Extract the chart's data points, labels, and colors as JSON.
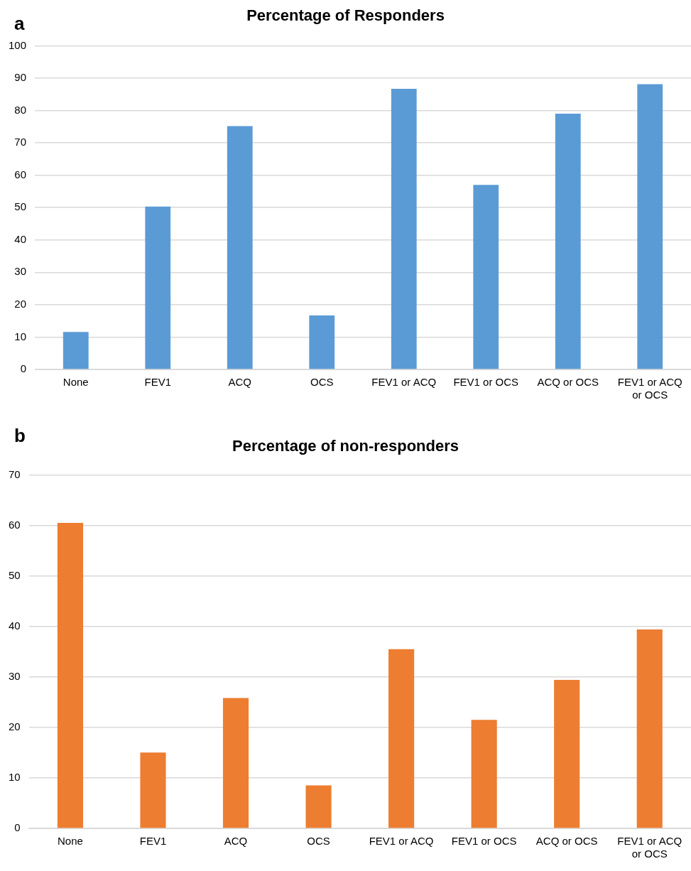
{
  "chart_data": [
    {
      "type": "bar",
      "title": "Percentage of Responders",
      "annotations": [
        "a"
      ],
      "categories": [
        "None",
        "FEV1",
        "ACQ",
        "OCS",
        "FEV1 or ACQ",
        "FEV1 or OCS",
        "ACQ or OCS",
        "FEV1 or ACQ or OCS"
      ],
      "values": [
        11.6,
        50.3,
        75.2,
        16.7,
        86.7,
        57.0,
        79.0,
        88.1
      ],
      "color": "#5b9bd5",
      "ylim": [
        0,
        100
      ],
      "yticks": [
        0,
        10,
        20,
        30,
        40,
        50,
        60,
        70,
        80,
        90,
        100
      ],
      "grid": "y",
      "legend": false
    },
    {
      "type": "bar",
      "title": "Percentage of non-responders",
      "annotations": [
        "b"
      ],
      "categories": [
        "None",
        "FEV1",
        "ACQ",
        "OCS",
        "FEV1 or ACQ",
        "FEV1 or OCS",
        "ACQ or OCS",
        "FEV1 or ACQ or OCS"
      ],
      "values": [
        60.5,
        15.0,
        25.8,
        8.5,
        35.5,
        21.5,
        29.4,
        39.4
      ],
      "color": "#ed7d31",
      "ylim": [
        0,
        70
      ],
      "yticks": [
        0,
        10,
        20,
        30,
        40,
        50,
        60,
        70
      ],
      "grid": "y",
      "legend": false
    }
  ]
}
